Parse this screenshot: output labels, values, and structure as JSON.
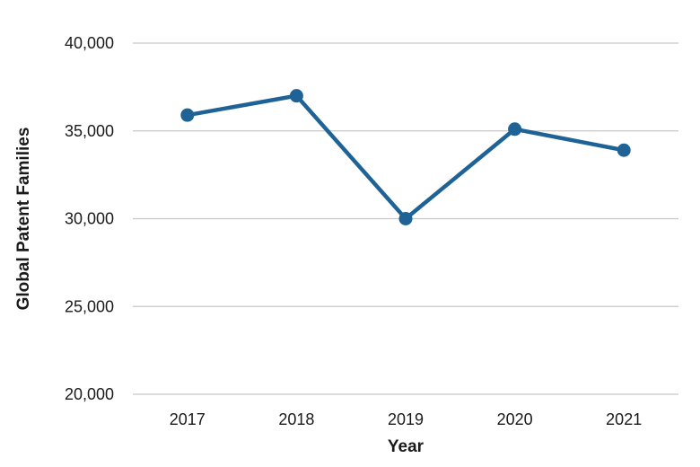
{
  "chart_data": {
    "type": "line",
    "title": "",
    "xlabel": "Year",
    "ylabel": "Global Patent Families",
    "categories": [
      "2017",
      "2018",
      "2019",
      "2020",
      "2021"
    ],
    "series": [
      {
        "values": [
          35900,
          37000,
          30000,
          35100,
          33900
        ]
      }
    ],
    "ylim": [
      20000,
      40000
    ],
    "yticks": [
      20000,
      25000,
      30000,
      35000,
      40000
    ],
    "ytick_labels": [
      "20,000",
      "25,000",
      "30,000",
      "35,000",
      "40,000"
    ],
    "grid": "horizontal",
    "legend": "none",
    "colors": {
      "line": "#1f6396",
      "grid": "#c8c8c8",
      "text": "#1a1a1a"
    }
  }
}
